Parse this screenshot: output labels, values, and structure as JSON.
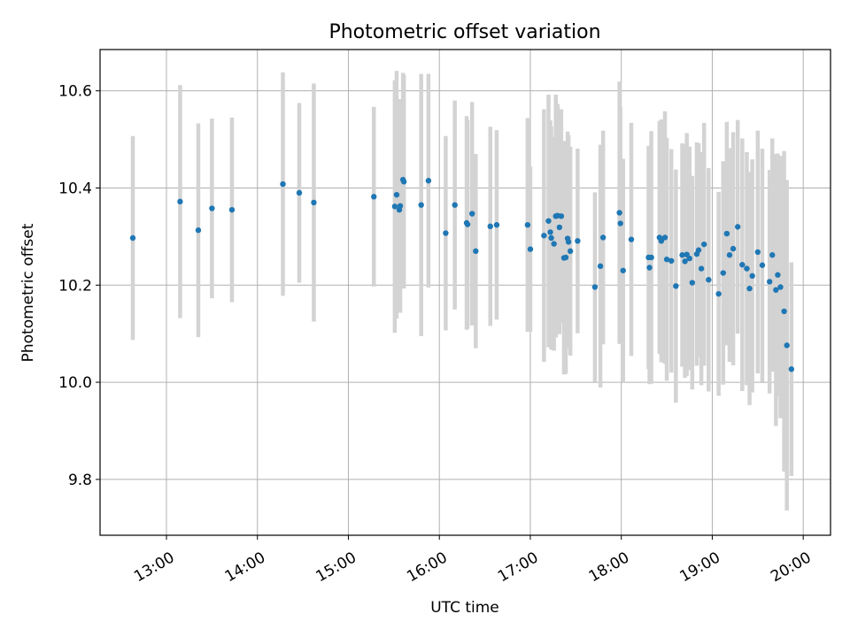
{
  "chart_data": {
    "type": "scatter",
    "title": "Photometric offset variation",
    "xlabel": "UTC time",
    "ylabel": "Photometric offset",
    "xlim": [
      12.27,
      20.3
    ],
    "ylim": [
      9.685,
      10.685
    ],
    "x_ticks": [
      13,
      14,
      15,
      16,
      17,
      18,
      19,
      20
    ],
    "x_tick_labels": [
      "13:00",
      "14:00",
      "15:00",
      "16:00",
      "17:00",
      "18:00",
      "19:00",
      "20:00"
    ],
    "y_ticks": [
      9.8,
      10.0,
      10.2,
      10.4,
      10.6
    ],
    "y_tick_labels": [
      "9.8",
      "10.0",
      "10.2",
      "10.4",
      "10.6"
    ],
    "grid": true,
    "colors": {
      "points": "#1f77b4",
      "errorbars": "#d3d3d3",
      "grid": "#b0b0b0"
    },
    "series": [
      {
        "x": [
          12.63,
          13.15,
          13.35,
          13.5,
          13.72,
          14.28,
          14.46,
          14.62,
          15.28,
          15.51,
          15.53,
          15.56,
          15.57,
          15.6,
          15.61,
          15.8,
          15.88,
          16.07,
          16.17,
          16.3,
          16.31,
          16.36,
          16.4,
          16.56,
          16.63,
          16.97,
          17.0,
          17.15,
          17.2,
          17.22,
          17.23,
          17.26,
          17.28,
          17.3,
          17.32,
          17.34,
          17.37,
          17.39,
          17.41,
          17.42,
          17.44,
          17.52,
          17.71,
          17.77,
          17.8,
          17.98,
          17.99,
          18.02,
          18.11,
          18.3,
          18.31,
          18.33,
          18.42,
          18.44,
          18.48,
          18.5,
          18.55,
          18.6,
          18.67,
          18.7,
          18.72,
          18.75,
          18.78,
          18.83,
          18.85,
          18.88,
          18.91,
          18.96,
          19.07,
          19.12,
          19.16,
          19.19,
          19.23,
          19.28,
          19.33,
          19.38,
          19.41,
          19.44,
          19.5,
          19.55,
          19.63,
          19.66,
          19.7,
          19.72,
          19.75,
          19.79,
          19.82,
          19.87
        ],
        "y": [
          10.297,
          10.372,
          10.313,
          10.358,
          10.355,
          10.408,
          10.39,
          10.37,
          10.382,
          10.362,
          10.386,
          10.355,
          10.363,
          10.417,
          10.413,
          10.365,
          10.415,
          10.307,
          10.365,
          10.328,
          10.325,
          10.347,
          10.27,
          10.321,
          10.324,
          10.324,
          10.274,
          10.302,
          10.332,
          10.309,
          10.297,
          10.285,
          10.342,
          10.343,
          10.319,
          10.342,
          10.256,
          10.257,
          10.296,
          10.289,
          10.27,
          10.291,
          10.196,
          10.239,
          10.298,
          10.349,
          10.327,
          10.23,
          10.294,
          10.257,
          10.236,
          10.257,
          10.298,
          10.291,
          10.298,
          10.253,
          10.25,
          10.198,
          10.262,
          10.249,
          10.263,
          10.255,
          10.205,
          10.264,
          10.272,
          10.234,
          10.284,
          10.211,
          10.182,
          10.225,
          10.306,
          10.262,
          10.275,
          10.32,
          10.242,
          10.234,
          10.193,
          10.219,
          10.268,
          10.241,
          10.207,
          10.262,
          10.19,
          10.221,
          10.196,
          10.146,
          10.076,
          10.027
        ],
        "yerr": [
          0.21,
          0.24,
          0.22,
          0.185,
          0.19,
          0.23,
          0.185,
          0.245,
          0.185,
          0.26,
          0.255,
          0.21,
          0.22,
          0.22,
          0.22,
          0.27,
          0.22,
          0.2,
          0.215,
          0.22,
          0.215,
          0.23,
          0.2,
          0.205,
          0.195,
          0.22,
          0.17,
          0.26,
          0.26,
          0.23,
          0.23,
          0.22,
          0.25,
          0.23,
          0.22,
          0.22,
          0.24,
          0.24,
          0.22,
          0.22,
          0.215,
          0.19,
          0.195,
          0.25,
          0.22,
          0.27,
          0.24,
          0.23,
          0.24,
          0.23,
          0.24,
          0.26,
          0.24,
          0.25,
          0.26,
          0.25,
          0.23,
          0.24,
          0.23,
          0.24,
          0.25,
          0.23,
          0.22,
          0.23,
          0.22,
          0.24,
          0.25,
          0.23,
          0.21,
          0.23,
          0.23,
          0.22,
          0.24,
          0.22,
          0.26,
          0.24,
          0.24,
          0.24,
          0.25,
          0.24,
          0.23,
          0.24,
          0.28,
          0.25,
          0.27,
          0.33,
          0.34,
          0.22
        ]
      }
    ]
  }
}
